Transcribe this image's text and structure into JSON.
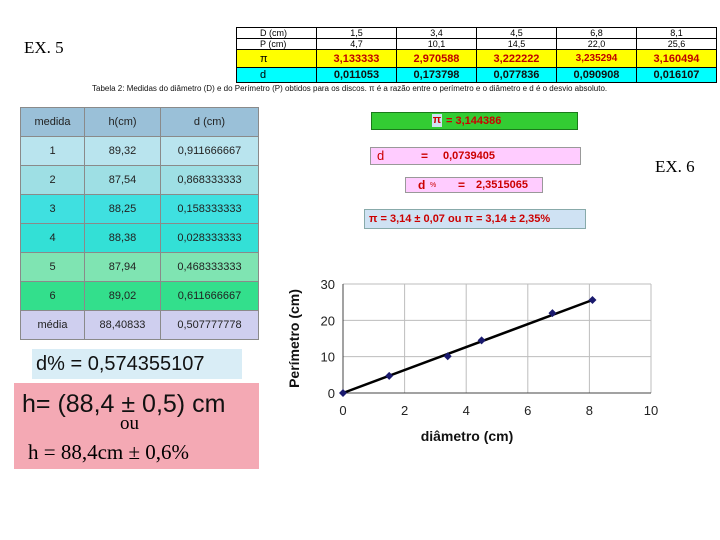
{
  "ex5_label": "EX. 5",
  "ex6_label": "EX. 6",
  "top_table": {
    "rows": [
      {
        "label": "D (cm)",
        "values": [
          "1,5",
          "3,4",
          "4,5",
          "6,8",
          "8,1"
        ]
      },
      {
        "label": "P (cm)",
        "values": [
          "4,7",
          "10,1",
          "14,5",
          "22,0",
          "25,6"
        ]
      },
      {
        "label": "π",
        "values": [
          "3,133333",
          "2,970588",
          "3,222222",
          "3,235294",
          "3,160494"
        ]
      },
      {
        "label": "d",
        "values": [
          "0,011053",
          "0,173798",
          "0,077836",
          "0,090908",
          "0,016107"
        ]
      }
    ]
  },
  "caption": "Tabela 2: Medidas do diâmetro (D) e do Perímetro (P)  obtidos para os discos. π é a razão entre o perímetro e o diâmetro e d é o desvio absoluto.",
  "left_table": {
    "headers": [
      "medida",
      "h(cm)",
      "d (cm)"
    ],
    "rows": [
      [
        "1",
        "89,32",
        "0,911666667"
      ],
      [
        "2",
        "87,54",
        "0,868333333"
      ],
      [
        "3",
        "88,25",
        "0,158333333"
      ],
      [
        "4",
        "88,38",
        "0,028333333"
      ],
      [
        "5",
        "87,94",
        "0,468333333"
      ],
      [
        "6",
        "89,02",
        "0,611666667"
      ],
      [
        "média",
        "88,40833",
        "0,507777778"
      ]
    ]
  },
  "d_percent": "d% = 0,574355107",
  "h_result": "h= (88,4 ± 0,5) cm",
  "ou": "ou",
  "h_alt": "h = 88,4cm ± 0,6%",
  "pi_box": {
    "symbol": "π",
    "text": "= 3,144386"
  },
  "d_box": {
    "label": "d",
    "eq": "=",
    "value": "0,0739405"
  },
  "dpct_box": {
    "label": "d",
    "sub": "%",
    "eq": "=",
    "value": "2,3515065"
  },
  "pi_result": "π = 3,14 ± 0,07 ou π = 3,14 ± 2,35%",
  "colors": {
    "yellow": "#ffff00",
    "cyan": "#00ffff",
    "green": "#33cc33",
    "pink": "#ffccff",
    "lightblue": "#cfe2f3",
    "red": "#cc0000"
  },
  "chart_data": {
    "type": "scatter",
    "x": [
      0,
      1.5,
      3.4,
      4.5,
      6.8,
      8.1
    ],
    "y": [
      0,
      4.7,
      10.1,
      14.5,
      22.0,
      25.6
    ],
    "line": {
      "x": [
        0,
        8.1
      ],
      "y": [
        0,
        25.6
      ]
    },
    "xlabel": "diâmetro (cm)",
    "ylabel": "Perímetro (cm)",
    "xlim": [
      0,
      10
    ],
    "ylim": [
      0,
      30
    ],
    "xticks": [
      "0",
      "2",
      "4",
      "6",
      "8",
      "10"
    ],
    "yticks": [
      "0",
      "10",
      "20",
      "30"
    ],
    "grid": true
  }
}
